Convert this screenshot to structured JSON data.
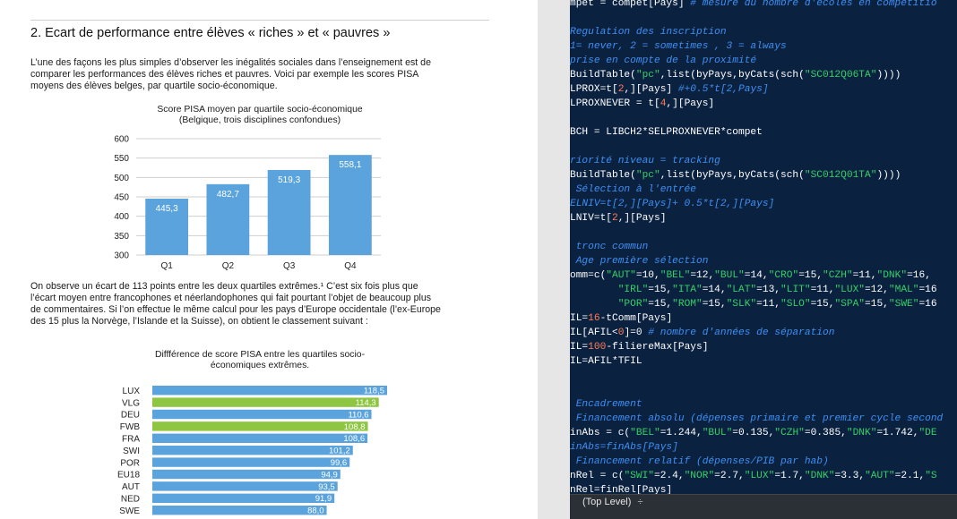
{
  "document": {
    "heading": "2.   Ecart de performance entre élèves « riches » et « pauvres »",
    "intro_lines": [
      "L’une des façons les plus simples d’observer les inégalités sociales dans l’enseignement est de",
      "comparer les performances des élèves riches et pauvres. Voici par exemple les scores PISA",
      "moyens des élèves belges, par quartile socio-économique."
    ],
    "middle_lines": [
      "On observe un écart de 113 points entre les deux quartiles extrêmes.¹ C’est six fois plus que",
      "l’écart moyen entre francophones et néerlandophones qui fait pourtant l’objet de beaucoup plus",
      "de commentaires. Si l’on effectue le même calcul pour les pays d’Europe occidentale (l’ex-Europe",
      "des 15 plus la Norvège, l’Islande et la Suisse), on obtient le classement suivant :"
    ]
  },
  "chart_data": [
    {
      "type": "bar",
      "title_lines": [
        "Score PISA moyen par quartile socio-économique",
        "(Belgique, trois disciplines confondues)"
      ],
      "categories": [
        "Q1",
        "Q2",
        "Q3",
        "Q4"
      ],
      "values": [
        445.3,
        482.7,
        519.3,
        558.1
      ],
      "value_labels": [
        "445,3",
        "482,7",
        "519,3",
        "558,1"
      ],
      "ylim": [
        300,
        600
      ],
      "yticks": [
        300,
        350,
        400,
        450,
        500,
        550,
        600
      ],
      "grid": true,
      "bar_color": "#5aa3dc"
    },
    {
      "type": "bar",
      "orientation": "horizontal",
      "title_lines": [
        "Diffférence de score PISA entre les quartiles socio-",
        "économiques extrêmes."
      ],
      "categories": [
        "LUX",
        "VLG",
        "DEU",
        "FWB",
        "FRA",
        "SWI",
        "POR",
        "EU18",
        "AUT",
        "NED",
        "SWE"
      ],
      "values": [
        118.5,
        114.3,
        110.6,
        108.8,
        108.6,
        101.2,
        99.6,
        94.9,
        93.5,
        91.9,
        88.0
      ],
      "value_labels": [
        "118,5",
        "114,3",
        "110,6",
        "108,8",
        "108,6",
        "101,2",
        "99,6",
        "94,9",
        "93,5",
        "91,9",
        "88,0"
      ],
      "highlight": [
        "VLG",
        "FWB"
      ],
      "bar_color": "#5aa3dc",
      "highlight_color": "#8ec641"
    }
  ],
  "editor": {
    "lines": [
      [
        [
          "mpet = compet[Pays] ",
          "c-white"
        ],
        [
          "# mesure du nombre d'écoles en compétitio",
          "c-comment"
        ]
      ],
      [
        [
          "",
          ""
        ]
      ],
      [
        [
          "Regulation des inscription",
          "c-comment"
        ]
      ],
      [
        [
          "1= never, 2 = sometimes , 3 = always",
          "c-comment"
        ]
      ],
      [
        [
          "prise en compte de la proximité",
          "c-comment"
        ]
      ],
      [
        [
          "BuildTable(",
          "c-white"
        ],
        [
          "\"pc\"",
          "c-string"
        ],
        [
          ",list(byPays,byCats(sch(",
          "c-white"
        ],
        [
          "\"SC012Q06TA\"",
          "c-string"
        ],
        [
          "))))",
          "c-white"
        ]
      ],
      [
        [
          "LPROX=t[",
          "c-white"
        ],
        [
          "2",
          "c-red"
        ],
        [
          ",][Pays] ",
          "c-white"
        ],
        [
          "#+0.5*t[2,Pays]",
          "c-comment"
        ]
      ],
      [
        [
          "LPROXNEVER = t[",
          "c-white"
        ],
        [
          "4",
          "c-red"
        ],
        [
          ",][Pays]",
          "c-white"
        ]
      ],
      [
        [
          "",
          ""
        ]
      ],
      [
        [
          "BCH = LIBCH2*SELPROXNEVER*compet",
          "c-white"
        ]
      ],
      [
        [
          "",
          ""
        ]
      ],
      [
        [
          "riorité niveau = tracking",
          "c-comment"
        ]
      ],
      [
        [
          "BuildTable(",
          "c-white"
        ],
        [
          "\"pc\"",
          "c-string"
        ],
        [
          ",list(byPays,byCats(sch(",
          "c-white"
        ],
        [
          "\"SC012Q01TA\"",
          "c-string"
        ],
        [
          "))))",
          "c-white"
        ]
      ],
      [
        [
          " Sélection à l'entrée",
          "c-comment"
        ]
      ],
      [
        [
          "ELNIV=t[2,][Pays]+ 0.5*t[2,][Pays]",
          "c-comment"
        ]
      ],
      [
        [
          "LNIV=t[",
          "c-white"
        ],
        [
          "2",
          "c-red"
        ],
        [
          ",][Pays]",
          "c-white"
        ]
      ],
      [
        [
          "",
          ""
        ]
      ],
      [
        [
          " tronc commun",
          "c-comment"
        ]
      ],
      [
        [
          " Age première sélection",
          "c-comment"
        ]
      ],
      [
        [
          "omm=c(",
          "c-white"
        ],
        [
          "\"AUT\"",
          "c-string"
        ],
        [
          "=10,",
          "c-white"
        ],
        [
          "\"BEL\"",
          "c-string"
        ],
        [
          "=12,",
          "c-white"
        ],
        [
          "\"BUL\"",
          "c-string"
        ],
        [
          "=14,",
          "c-white"
        ],
        [
          "\"CRO\"",
          "c-string"
        ],
        [
          "=15,",
          "c-white"
        ],
        [
          "\"CZH\"",
          "c-string"
        ],
        [
          "=11,",
          "c-white"
        ],
        [
          "\"DNK\"",
          "c-string"
        ],
        [
          "=16,",
          "c-white"
        ]
      ],
      [
        [
          "        \"IRL\"",
          "c-string"
        ],
        [
          "=15,",
          "c-white"
        ],
        [
          "\"ITA\"",
          "c-string"
        ],
        [
          "=14,",
          "c-white"
        ],
        [
          "\"LAT\"",
          "c-string"
        ],
        [
          "=13,",
          "c-white"
        ],
        [
          "\"LIT\"",
          "c-string"
        ],
        [
          "=11,",
          "c-white"
        ],
        [
          "\"LUX\"",
          "c-string"
        ],
        [
          "=12,",
          "c-white"
        ],
        [
          "\"MAL\"",
          "c-string"
        ],
        [
          "=16",
          "c-white"
        ]
      ],
      [
        [
          "        \"POR\"",
          "c-string"
        ],
        [
          "=15,",
          "c-white"
        ],
        [
          "\"ROM\"",
          "c-string"
        ],
        [
          "=15,",
          "c-white"
        ],
        [
          "\"SLK\"",
          "c-string"
        ],
        [
          "=11,",
          "c-white"
        ],
        [
          "\"SLO\"",
          "c-string"
        ],
        [
          "=15,",
          "c-white"
        ],
        [
          "\"SPA\"",
          "c-string"
        ],
        [
          "=15,",
          "c-white"
        ],
        [
          "\"SWE\"",
          "c-string"
        ],
        [
          "=16",
          "c-white"
        ]
      ],
      [
        [
          "IL=",
          "c-white"
        ],
        [
          "16",
          "c-red"
        ],
        [
          "-tComm[Pays]",
          "c-white"
        ]
      ],
      [
        [
          "IL[AFIL<",
          "c-white"
        ],
        [
          "0",
          "c-red"
        ],
        [
          "]=0 ",
          "c-white"
        ],
        [
          "# nombre d'années de séparation",
          "c-comment"
        ]
      ],
      [
        [
          "IL=",
          "c-white"
        ],
        [
          "100",
          "c-red"
        ],
        [
          "-filiereMax[Pays]",
          "c-white"
        ]
      ],
      [
        [
          "IL=AFIL*TFIL",
          "c-white"
        ]
      ],
      [
        [
          "",
          ""
        ]
      ],
      [
        [
          "",
          ""
        ]
      ],
      [
        [
          " Encadrement",
          "c-comment"
        ]
      ],
      [
        [
          " Financement absolu (dépenses primaire et premier cycle second",
          "c-comment"
        ]
      ],
      [
        [
          "inAbs = c(",
          "c-white"
        ],
        [
          "\"BEL\"",
          "c-string"
        ],
        [
          "=1.244,",
          "c-white"
        ],
        [
          "\"BUL\"",
          "c-string"
        ],
        [
          "=0.135,",
          "c-white"
        ],
        [
          "\"CZH\"",
          "c-string"
        ],
        [
          "=0.385,",
          "c-white"
        ],
        [
          "\"DNK\"",
          "c-string"
        ],
        [
          "=1.742,",
          "c-white"
        ],
        [
          "\"DE",
          "c-string"
        ]
      ],
      [
        [
          "inAbs=finAbs[Pays]",
          "c-comment"
        ]
      ],
      [
        [
          " Financement relatif (dépenses/PIB par hab)",
          "c-comment"
        ]
      ],
      [
        [
          "nRel = c(",
          "c-white"
        ],
        [
          "\"SWI\"",
          "c-string"
        ],
        [
          "=2.4,",
          "c-white"
        ],
        [
          "\"NOR\"",
          "c-string"
        ],
        [
          "=2.7,",
          "c-white"
        ],
        [
          "\"LUX\"",
          "c-string"
        ],
        [
          "=1.7,",
          "c-white"
        ],
        [
          "\"DNK\"",
          "c-string"
        ],
        [
          "=3.3,",
          "c-white"
        ],
        [
          "\"AUT\"",
          "c-string"
        ],
        [
          "=2.1,",
          "c-white"
        ],
        [
          "\"S",
          "c-string"
        ]
      ],
      [
        [
          "nRel=finRel[Pays]",
          "c-white"
        ]
      ]
    ],
    "status_label": "(Top Level)",
    "status_chevron": "÷"
  }
}
